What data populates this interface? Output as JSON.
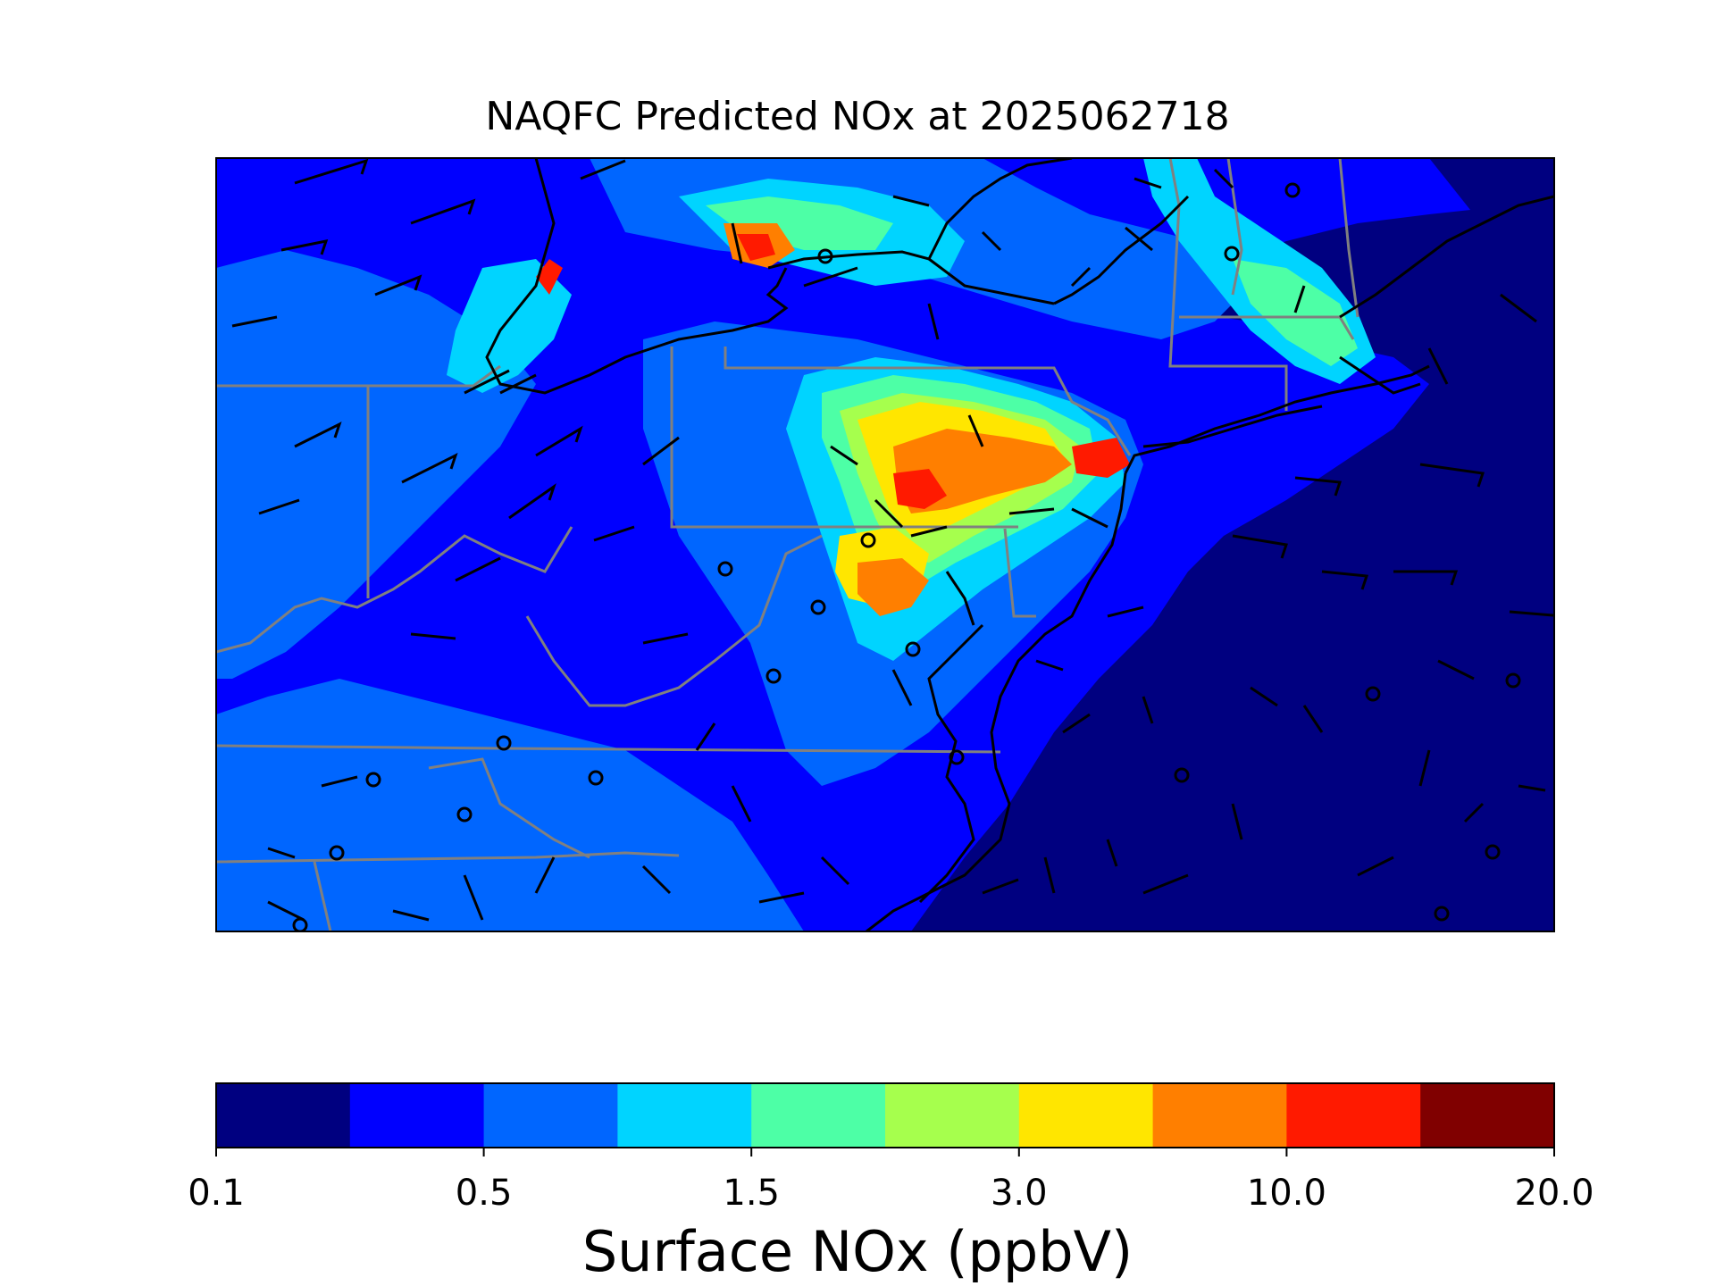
{
  "title": "NAQFC Predicted NOx at 2025062718",
  "colorbar": {
    "label": "Surface NOx (ppbV)",
    "tick_labels": [
      "0.1",
      "0.5",
      "1.5",
      "3.0",
      "10.0",
      "20.0"
    ],
    "colors": [
      "#000080",
      "#0000ff",
      "#0066ff",
      "#00d4ff",
      "#4dffa6",
      "#a6ff4d",
      "#ffe600",
      "#ff7f00",
      "#ff1a00",
      "#800000"
    ]
  },
  "map": {
    "background_level": "#0000ff",
    "coastline_color": "#000000",
    "state_line_color": "#808080",
    "features": [
      "wind-barbs",
      "station-markers",
      "state-boundaries",
      "coastline"
    ]
  }
}
